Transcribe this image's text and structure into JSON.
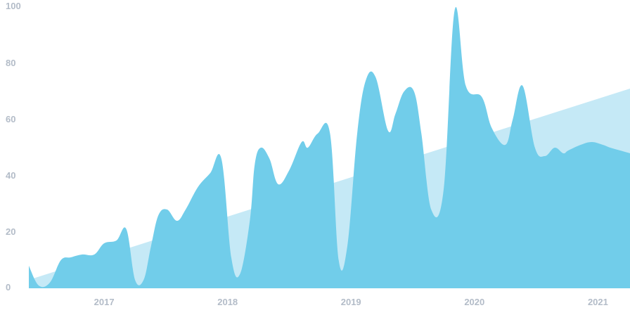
{
  "chart_data": {
    "type": "area",
    "colors": {
      "main_area": "#71cdea",
      "trend_area": "#c5e9f6",
      "tick_text": "#b3bcc8",
      "background": "#ffffff"
    },
    "ylim": [
      0,
      100
    ],
    "xlim": [
      2016.39,
      2021.26
    ],
    "y_ticks": [
      {
        "value": 0,
        "label": "0"
      },
      {
        "value": 20,
        "label": "20"
      },
      {
        "value": 40,
        "label": "40"
      },
      {
        "value": 60,
        "label": "60"
      },
      {
        "value": 80,
        "label": "80"
      },
      {
        "value": 100,
        "label": "100"
      }
    ],
    "x_ticks": [
      {
        "value": 2017,
        "label": "2017"
      },
      {
        "value": 2018,
        "label": "2018"
      },
      {
        "value": 2019,
        "label": "2019"
      },
      {
        "value": 2020,
        "label": "2020"
      },
      {
        "value": 2021,
        "label": "2021"
      }
    ],
    "grid": false,
    "legend": "none",
    "series": [
      {
        "x": [
          2016.39,
          2016.47,
          2016.56,
          2016.65,
          2016.73,
          2016.82,
          2016.92,
          2017.0,
          2017.1,
          2017.18,
          2017.25,
          2017.32,
          2017.38,
          2017.44,
          2017.51,
          2017.59,
          2017.66,
          2017.76,
          2017.86,
          2017.95,
          2018.03,
          2018.1,
          2018.18,
          2018.22,
          2018.27,
          2018.34,
          2018.41,
          2018.5,
          2018.6,
          2018.65,
          2018.73,
          2018.83,
          2018.9,
          2018.97,
          2019.05,
          2019.12,
          2019.2,
          2019.3,
          2019.36,
          2019.43,
          2019.51,
          2019.57,
          2019.65,
          2019.75,
          2019.84,
          2019.93,
          2020.06,
          2020.14,
          2020.25,
          2020.31,
          2020.39,
          2020.49,
          2020.57,
          2020.65,
          2020.72,
          2020.76,
          2020.86,
          2020.95,
          2021.04,
          2021.1,
          2021.18,
          2021.26
        ],
        "y": [
          8,
          1,
          2,
          10,
          11,
          12,
          12,
          16,
          17,
          21,
          3,
          3,
          15,
          26,
          28,
          24,
          28,
          36,
          41,
          46,
          11,
          5,
          24,
          44,
          50,
          46,
          37,
          42,
          52,
          50,
          55,
          55,
          10,
          15,
          55,
          74,
          75,
          56,
          62,
          70,
          70,
          55,
          28,
          35,
          99,
          72,
          68,
          57,
          51,
          60,
          72,
          50,
          47,
          50,
          48,
          49,
          51,
          52,
          51,
          50,
          49,
          48
        ]
      },
      {
        "x": [
          2016.39,
          2021.26
        ],
        "y": [
          3,
          71
        ]
      }
    ]
  }
}
